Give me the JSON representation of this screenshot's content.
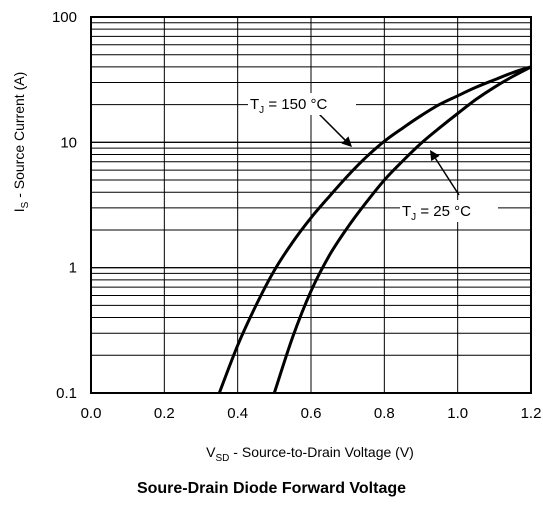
{
  "chart_data": {
    "type": "line",
    "title": "Soure-Drain Diode Forward Voltage",
    "xlabel": {
      "main": "V",
      "sub": "SD",
      "rest": " - Source-to-Drain Voltage (V)"
    },
    "ylabel": {
      "main": "I",
      "sub": "S",
      "rest": " - Source Current (A)"
    },
    "xlim": [
      0.0,
      1.2
    ],
    "ylim": [
      0.1,
      100
    ],
    "y_scale": "log",
    "grid": true,
    "x_ticks": [
      0.0,
      0.2,
      0.4,
      0.6,
      0.8,
      1.0,
      1.2
    ],
    "x_tick_labels": [
      "0.0",
      "0.2",
      "0.4",
      "0.6",
      "0.8",
      "1.0",
      "1.2"
    ],
    "y_ticks": [
      0.1,
      1,
      10,
      100
    ],
    "y_tick_labels": [
      "0.1",
      "1",
      "10",
      "100"
    ],
    "series": [
      {
        "name": "T_J = 150 °C",
        "label_main": "T",
        "label_sub": "J",
        "label_rest": " = 150 °C",
        "x": [
          0.35,
          0.4,
          0.45,
          0.5,
          0.55,
          0.6,
          0.65,
          0.7,
          0.75,
          0.8,
          0.85,
          0.9,
          0.95,
          1.0,
          1.05,
          1.1,
          1.15,
          1.2
        ],
        "y": [
          0.1,
          0.24,
          0.5,
          0.95,
          1.6,
          2.5,
          3.7,
          5.4,
          7.6,
          10.2,
          13.0,
          16.3,
          20.0,
          23.5,
          27.5,
          31.5,
          36.0,
          40.0
        ]
      },
      {
        "name": "T_J = 25 °C",
        "label_main": "T",
        "label_sub": "J",
        "label_rest": " = 25 °C",
        "x": [
          0.5,
          0.55,
          0.6,
          0.65,
          0.7,
          0.75,
          0.8,
          0.85,
          0.9,
          0.95,
          1.0,
          1.05,
          1.1,
          1.15,
          1.2
        ],
        "y": [
          0.1,
          0.28,
          0.65,
          1.25,
          2.1,
          3.3,
          5.0,
          7.1,
          9.8,
          13.0,
          17.0,
          22.0,
          27.5,
          33.5,
          40.0
        ]
      }
    ]
  }
}
